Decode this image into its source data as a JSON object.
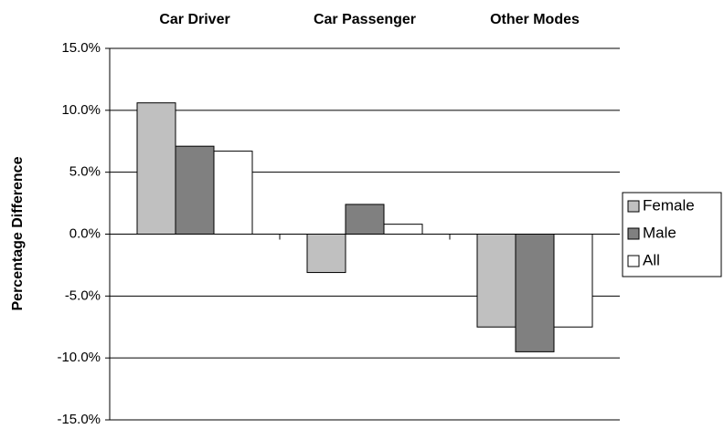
{
  "chart_data": {
    "type": "bar",
    "y_label": "Percentage Difference",
    "categories": [
      "Car Driver",
      "Car Passenger",
      "Other Modes"
    ],
    "series": [
      {
        "name": "Female",
        "color": "#c0c0c0",
        "values": [
          10.6,
          -3.1,
          -7.5
        ]
      },
      {
        "name": "Male",
        "color": "#808080",
        "values": [
          7.1,
          2.4,
          -9.5
        ]
      },
      {
        "name": "All",
        "color": "#ffffff",
        "values": [
          6.7,
          0.8,
          -7.5
        ]
      }
    ],
    "ylim": [
      -15,
      15
    ],
    "yticks": [
      {
        "value": -15,
        "label": "-15.0%"
      },
      {
        "value": -10,
        "label": "-10.0%"
      },
      {
        "value": -5,
        "label": "-5.0%"
      },
      {
        "value": 0,
        "label": "0.0%"
      },
      {
        "value": 5,
        "label": "5.0%"
      },
      {
        "value": 10,
        "label": "10.0%"
      },
      {
        "value": 15,
        "label": "15.0%"
      }
    ],
    "grid": true,
    "legend": "right"
  }
}
